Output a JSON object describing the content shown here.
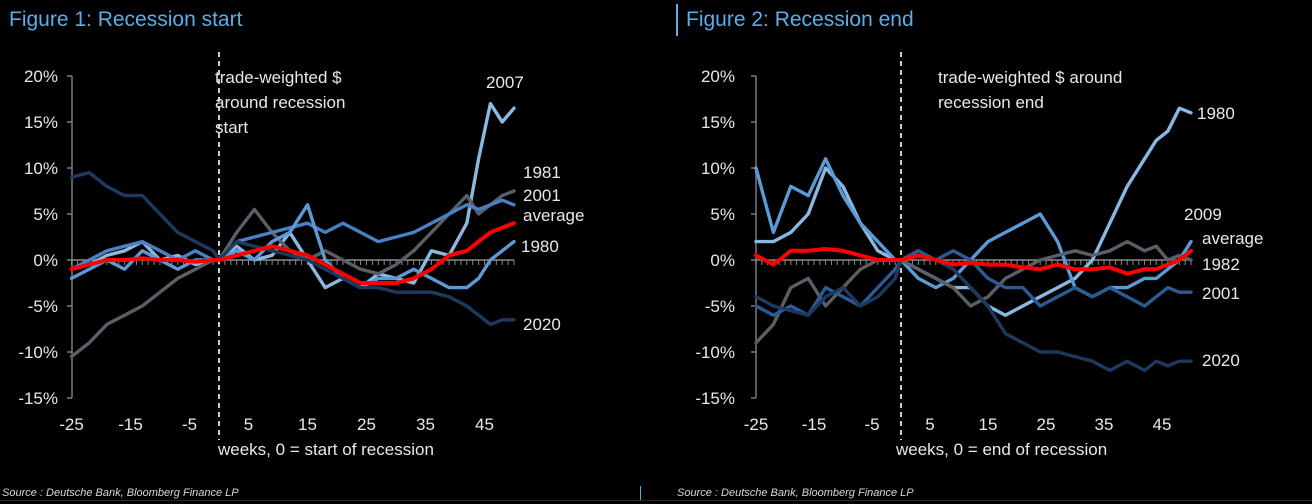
{
  "chart_data": [
    {
      "type": "line",
      "title": "Figure 1: Recession start",
      "xlabel": "weeks, 0 = start of recession",
      "ylabel": "",
      "annotation": [
        "trade-weighted $",
        "around recession",
        "start"
      ],
      "source": "Source : Deutsche Bank, Bloomberg Finance LP",
      "xlim": [
        -25,
        50
      ],
      "ylim": [
        -15,
        20
      ],
      "xticks": [
        -25,
        -15,
        -5,
        5,
        15,
        25,
        35,
        45
      ],
      "xtick_labels": [
        "-25",
        "-15",
        "-5",
        "5",
        "15",
        "25",
        "35",
        "45"
      ],
      "yticks": [
        -15,
        -10,
        -5,
        0,
        5,
        10,
        15,
        20
      ],
      "ytick_labels": [
        "-15%",
        "-10%",
        "-5%",
        "0%",
        "5%",
        "10%",
        "15%",
        "20%"
      ],
      "x": [
        -25,
        -22,
        -19,
        -16,
        -13,
        -10,
        -7,
        -4,
        -1,
        0,
        3,
        6,
        9,
        12,
        15,
        18,
        21,
        24,
        27,
        30,
        33,
        36,
        39,
        42,
        44,
        46,
        48,
        50
      ],
      "series": [
        {
          "name": "2007",
          "color": "#8ab8e0",
          "values": [
            -1,
            -0.5,
            0.5,
            1,
            2,
            0,
            0.5,
            -0.5,
            0,
            0,
            1.5,
            0,
            0.5,
            3,
            0,
            -3,
            -2,
            -3,
            -1.5,
            -2,
            -2.5,
            1,
            0.5,
            4,
            11,
            17,
            15,
            16.5
          ]
        },
        {
          "name": "1981",
          "color": "#5a5e66",
          "values": [
            -10.5,
            -9,
            -7,
            -6,
            -5,
            -3.5,
            -2,
            -1,
            0,
            0,
            3,
            5.5,
            3,
            1,
            0,
            1,
            0,
            -1,
            -1.5,
            -0.5,
            1,
            3,
            5,
            7,
            5,
            6,
            7,
            7.5
          ]
        },
        {
          "name": "2001",
          "color": "#4a80c4",
          "values": [
            -1,
            0,
            1,
            1.5,
            2,
            1,
            0,
            1,
            0,
            0,
            2,
            2.5,
            3,
            3.5,
            4,
            3,
            4,
            3,
            2,
            2.5,
            3,
            4,
            5,
            6,
            5.5,
            6,
            6.5,
            6
          ]
        },
        {
          "name": "1980",
          "color": "#5c9ad6",
          "values": [
            -2,
            -1,
            0,
            -1,
            1,
            0,
            -1,
            0,
            0,
            0,
            1,
            0,
            2,
            3,
            6,
            0,
            -2,
            -3,
            -2,
            -2,
            -1,
            -2,
            -3,
            -3,
            -2,
            0,
            1,
            2
          ]
        },
        {
          "name": "2020",
          "color": "#1d3a5e",
          "values": [
            9,
            9.5,
            8,
            7,
            7,
            5,
            3,
            2,
            1,
            0,
            2,
            1.5,
            1,
            0.5,
            0,
            -1,
            -2,
            -3,
            -3,
            -3.5,
            -3.5,
            -3.5,
            -4,
            -5,
            -6,
            -7,
            -6.5,
            -6.5
          ]
        },
        {
          "name": "average",
          "color": "#ff0000",
          "values": [
            -1,
            -0.5,
            0,
            0,
            0.2,
            0,
            0,
            -0.2,
            0,
            0,
            0.5,
            1,
            1.5,
            1,
            0.5,
            -0.5,
            -1.5,
            -2.5,
            -2.5,
            -2.5,
            -2,
            -1,
            0.5,
            1,
            2,
            3,
            3.5,
            4
          ]
        }
      ],
      "end_labels": [
        "2007",
        "1981",
        "2001",
        "average",
        "1980",
        "2020"
      ]
    },
    {
      "type": "line",
      "title": "Figure 2: Recession end",
      "xlabel": "weeks, 0 =  end of recession",
      "ylabel": "",
      "annotation": [
        "trade-weighted $ around",
        "recession end"
      ],
      "source": "Source : Deutsche Bank, Bloomberg Finance LP",
      "xlim": [
        -25,
        50
      ],
      "ylim": [
        -15,
        20
      ],
      "xticks": [
        -25,
        -15,
        -5,
        5,
        15,
        25,
        35,
        45
      ],
      "xtick_labels": [
        "-25",
        "-15",
        "-5",
        "5",
        "15",
        "25",
        "35",
        "45"
      ],
      "yticks": [
        -15,
        -10,
        -5,
        0,
        5,
        10,
        15,
        20
      ],
      "ytick_labels": [
        "-15%",
        "-10%",
        "-5%",
        "0%",
        "5%",
        "10%",
        "15%",
        "20%"
      ],
      "x": [
        -25,
        -22,
        -19,
        -16,
        -13,
        -10,
        -7,
        -4,
        -1,
        0,
        3,
        6,
        9,
        12,
        15,
        18,
        21,
        24,
        27,
        30,
        33,
        36,
        39,
        42,
        44,
        46,
        48,
        50
      ],
      "series": [
        {
          "name": "1980",
          "color": "#8ab8e0",
          "values": [
            2,
            2,
            3,
            5,
            10,
            8,
            4,
            1,
            0,
            0,
            -1,
            -2,
            -3,
            -3,
            -5,
            -6,
            -5,
            -4,
            -3,
            -2,
            0,
            4,
            8,
            11,
            13,
            14,
            16.5,
            16
          ]
        },
        {
          "name": "2009",
          "color": "#5c9ad6",
          "values": [
            10,
            3,
            8,
            7,
            11,
            7,
            4,
            2,
            0,
            0,
            -2,
            -3,
            -2,
            0,
            2,
            3,
            4,
            5,
            2,
            -3,
            -4,
            -3,
            -3,
            -2,
            -2,
            -1,
            0,
            2
          ]
        },
        {
          "name": "1982",
          "color": "#5a5e66",
          "values": [
            -9,
            -7,
            -3,
            -2,
            -5,
            -3,
            -1,
            0,
            0,
            0,
            -1,
            -2,
            -3,
            -5,
            -4,
            -2,
            -1,
            0,
            0.5,
            1,
            0.5,
            1,
            2,
            1,
            1.5,
            0,
            0.5,
            0
          ]
        },
        {
          "name": "2001",
          "color": "#2c5a94",
          "values": [
            -5,
            -6,
            -5,
            -6,
            -3,
            -4,
            -5,
            -3,
            -1,
            0,
            1,
            0,
            1,
            0,
            -2,
            -3,
            -3,
            -5,
            -4,
            -3,
            -4,
            -3,
            -4,
            -5,
            -4,
            -3,
            -3.5,
            -3.5
          ]
        },
        {
          "name": "2020",
          "color": "#1d3a5e",
          "values": [
            -4,
            -5,
            -5.5,
            -6,
            -4,
            -3,
            -5,
            -4,
            -2,
            0,
            0.5,
            0,
            -1,
            -3,
            -5,
            -8,
            -9,
            -10,
            -10,
            -10.5,
            -11,
            -12,
            -11,
            -12,
            -11,
            -11.5,
            -11,
            -11
          ]
        },
        {
          "name": "average",
          "color": "#ff0000",
          "values": [
            0.5,
            -0.5,
            1,
            1,
            1.2,
            1,
            0.5,
            0,
            0,
            0,
            0.5,
            0,
            -0.5,
            -0.3,
            -0.5,
            -0.5,
            -0.8,
            -1,
            -0.5,
            -1,
            -1,
            -0.8,
            -1.5,
            -1,
            -1,
            -0.5,
            0,
            1
          ]
        }
      ],
      "end_labels": [
        "1980",
        "2009",
        "average",
        "1982",
        "2001",
        "2020"
      ]
    }
  ]
}
